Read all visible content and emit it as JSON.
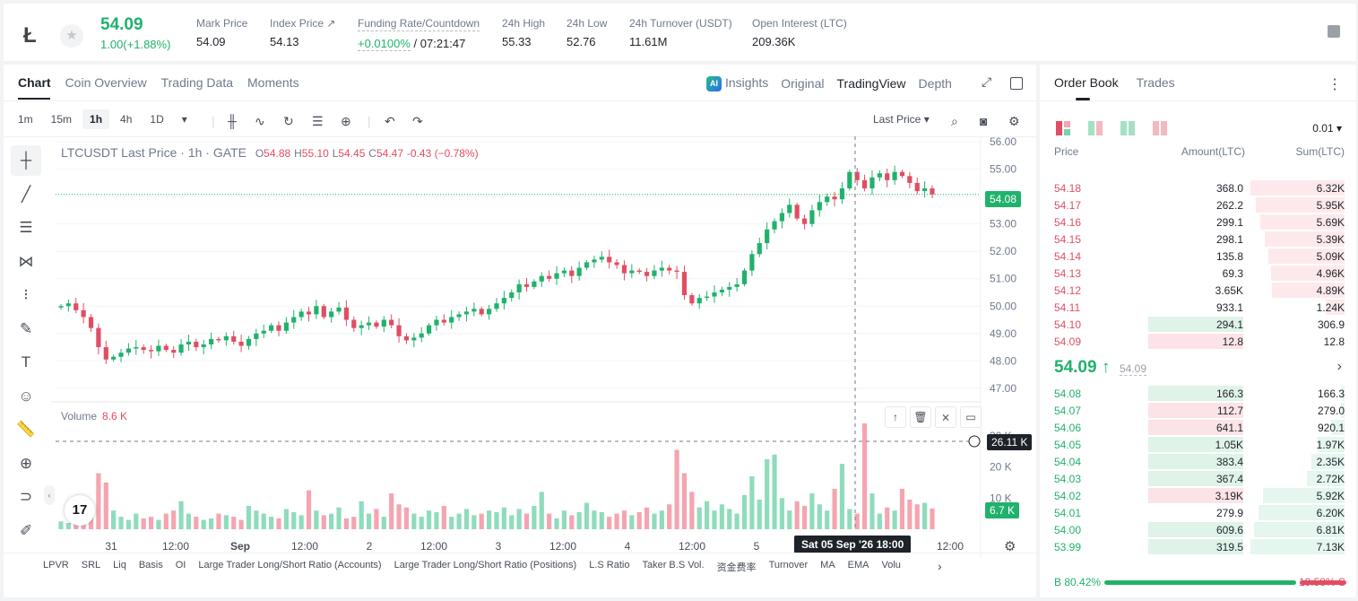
{
  "ticker": {
    "last_price": "54.09",
    "change": "1.00(+1.88%)",
    "stats": [
      {
        "label": "Mark Price",
        "value": "54.09"
      },
      {
        "label": "Index Price ↗",
        "value": "54.13"
      },
      {
        "label": "Funding Rate/Countdown",
        "value_green": "+0.0100%",
        "value_rest": " / 07:21:47"
      },
      {
        "label": "24h High",
        "value": "55.33"
      },
      {
        "label": "24h Low",
        "value": "52.76"
      },
      {
        "label": "24h Turnover (USDT)",
        "value": "11.61M"
      },
      {
        "label": "Open Interest (LTC)",
        "value": "209.36K"
      }
    ],
    "logo_glyph": "Ł",
    "star_glyph": "★"
  },
  "chart_panel": {
    "tabs": [
      "Chart",
      "Coin Overview",
      "Trading Data",
      "Moments"
    ],
    "ai_badge": "AI",
    "view_tabs": [
      "Insights",
      "Original",
      "TradingView",
      "Depth"
    ],
    "intervals": [
      "1m",
      "15m",
      "1h",
      "4h",
      "1D"
    ],
    "dropdown_glyph": "▾",
    "price_type": "Last Price ▾",
    "tool_glyphs": [
      "┼",
      "╱",
      "☰",
      "⋈",
      "⁝",
      "✎",
      "T",
      "☺",
      "📏",
      "⊕",
      "⊃",
      "✐"
    ],
    "ohlc": {
      "title": "LTCUSDT Last Price · 1h · GATE",
      "o_label": "O",
      "o": "54.88",
      "h_label": "H",
      "h": "55.10",
      "l_label": "L",
      "l": "54.45",
      "c_label": "C",
      "c": "54.47",
      "chg": "-0.43 (−0.78%)"
    },
    "volume_label": "Volume",
    "volume_value": "8.6 K",
    "last_price_tag": "54.08",
    "cross_tag": "26.11 K",
    "volume_tag": "6.7 K",
    "cross_time_tag": "Sat 05 Sep '26   18:00",
    "tv_logo": "17",
    "indicators": [
      "LPVR",
      "SRL",
      "Liq",
      "Basis",
      "OI",
      "Large Trader Long/Short Ratio (Accounts)",
      "Large Trader Long/Short Ratio (Positions)",
      "L.S Ratio",
      "Taker B.S Vol.",
      "资金费率",
      "Turnover",
      "MA",
      "EMA",
      "Volu"
    ],
    "colors": {
      "up": "#20b26c",
      "down": "#e04e63",
      "up_vol": "#8fdcbc",
      "down_vol": "#f4a5b1"
    }
  },
  "chart_data": {
    "type": "candlestick",
    "price_axis": [
      "56.00",
      "55.00",
      "54.00",
      "53.00",
      "52.00",
      "51.00",
      "50.00",
      "49.00",
      "48.00",
      "47.00"
    ],
    "volume_axis": [
      "30 K",
      "20 K",
      "10 K"
    ],
    "time_labels": [
      "31",
      "12:00",
      "Sep",
      "12:00",
      "2",
      "12:00",
      "3",
      "12:00",
      "4",
      "12:00",
      "5",
      "12:00"
    ],
    "ylim": [
      46.7,
      56.2
    ],
    "volume_ylim": [
      0,
      34000
    ],
    "close_series": [
      50.0,
      50.1,
      49.85,
      49.6,
      49.2,
      48.5,
      48.05,
      48.15,
      48.3,
      48.45,
      48.5,
      48.4,
      48.35,
      48.55,
      48.4,
      48.3,
      48.6,
      48.7,
      48.5,
      48.6,
      48.8,
      48.75,
      48.9,
      48.7,
      48.55,
      48.8,
      49.0,
      49.1,
      49.3,
      49.1,
      49.4,
      49.6,
      49.8,
      49.7,
      50.0,
      49.6,
      49.8,
      49.95,
      49.5,
      49.2,
      49.3,
      49.4,
      49.25,
      49.5,
      49.3,
      48.9,
      48.75,
      48.85,
      49.0,
      49.3,
      49.5,
      49.4,
      49.6,
      49.7,
      49.8,
      49.9,
      49.7,
      49.9,
      50.1,
      50.3,
      50.5,
      50.8,
      50.7,
      50.9,
      51.1,
      51.0,
      51.2,
      51.3,
      51.1,
      51.4,
      51.6,
      51.7,
      51.8,
      51.6,
      51.5,
      51.2,
      51.3,
      51.25,
      51.1,
      51.3,
      51.4,
      51.3,
      51.25,
      50.4,
      50.1,
      50.3,
      50.35,
      50.5,
      50.6,
      50.7,
      50.8,
      51.3,
      51.9,
      52.3,
      52.8,
      53.1,
      53.4,
      53.7,
      53.2,
      53.0,
      53.5,
      53.8,
      54.0,
      53.9,
      54.3,
      54.9,
      54.6,
      54.3,
      54.7,
      54.85,
      54.6,
      54.9,
      54.75,
      54.5,
      54.2,
      54.3,
      54.08
    ],
    "volume_series": [
      2500,
      2000,
      4500,
      3000,
      8000,
      18000,
      15000,
      6000,
      4000,
      3000,
      5000,
      3500,
      4000,
      3000,
      5000,
      6000,
      9000,
      5000,
      4000,
      3000,
      3500,
      5000,
      4500,
      4000,
      3000,
      7500,
      6000,
      5000,
      4000,
      3500,
      6500,
      5500,
      4500,
      12500,
      6000,
      4500,
      5000,
      7000,
      3500,
      4000,
      9000,
      5000,
      6500,
      4000,
      11500,
      8000,
      7000,
      5000,
      4000,
      6000,
      5500,
      7500,
      4000,
      5000,
      6500,
      4500,
      5000,
      6000,
      5500,
      7000,
      4500,
      6500,
      5000,
      7500,
      12000,
      5000,
      3500,
      6000,
      4500,
      5500,
      8500,
      6000,
      5500,
      4000,
      5000,
      6000,
      4500,
      5500,
      7000,
      5000,
      6000,
      8000,
      25500,
      18000,
      12000,
      7000,
      9000,
      6000,
      8000,
      6500,
      5000,
      11000,
      17000,
      9500,
      22500,
      24000,
      10000,
      6000,
      9000,
      7500,
      11500,
      8000,
      6000,
      13000,
      21000,
      6500,
      5000,
      34000,
      11500,
      5000,
      7000,
      6000,
      13000,
      9500,
      8000,
      8500,
      6700
    ]
  },
  "orderbook": {
    "tabs": [
      "Order Book",
      "Trades"
    ],
    "more_glyph": "⋮",
    "precision": "0.01 ▾",
    "headers": {
      "price": "Price",
      "amount": "Amount(LTC)",
      "sum": "Sum(LTC)"
    },
    "asks": [
      {
        "price": "54.18",
        "amount": "368.0",
        "sum": "6.32K",
        "depth": 1.0,
        "amt": 0.0
      },
      {
        "price": "54.17",
        "amount": "262.2",
        "sum": "5.95K",
        "depth": 0.94,
        "amt": 0.0
      },
      {
        "price": "54.16",
        "amount": "299.1",
        "sum": "5.69K",
        "depth": 0.9,
        "amt": 0.0
      },
      {
        "price": "54.15",
        "amount": "298.1",
        "sum": "5.39K",
        "depth": 0.85,
        "amt": 0.0
      },
      {
        "price": "54.14",
        "amount": "135.8",
        "sum": "5.09K",
        "depth": 0.81,
        "amt": 0.0
      },
      {
        "price": "54.13",
        "amount": "69.3",
        "sum": "4.96K",
        "depth": 0.78,
        "amt": 0.0
      },
      {
        "price": "54.12",
        "amount": "3.65K",
        "sum": "4.89K",
        "depth": 0.77,
        "amt": 0.0
      },
      {
        "price": "54.11",
        "amount": "933.1",
        "sum": "1.24K",
        "depth": 0.2,
        "amt": 0.0
      },
      {
        "price": "54.10",
        "amount": "294.1",
        "sum": "306.9",
        "depth": 0.0,
        "amt": 1.0,
        "amt_color": "up"
      },
      {
        "price": "54.09",
        "amount": "12.8",
        "sum": "12.8",
        "depth": 0.0,
        "amt": 1.0,
        "amt_color": "down"
      }
    ],
    "mid_price": "54.09 ↑",
    "mid_ref": "54.09",
    "mid_chevron": "›",
    "bids": [
      {
        "price": "54.08",
        "amount": "166.3",
        "sum": "166.3",
        "depth": 0.03,
        "amt": 1.0,
        "amt_color": "up"
      },
      {
        "price": "54.07",
        "amount": "112.7",
        "sum": "279.0",
        "depth": 0.04,
        "amt": 1.0,
        "amt_color": "down"
      },
      {
        "price": "54.06",
        "amount": "641.1",
        "sum": "920.1",
        "depth": 0.14,
        "amt": 1.0,
        "amt_color": "down"
      },
      {
        "price": "54.05",
        "amount": "1.05K",
        "sum": "1.97K",
        "depth": 0.29,
        "amt": 1.0,
        "amt_color": "up"
      },
      {
        "price": "54.04",
        "amount": "383.4",
        "sum": "2.35K",
        "depth": 0.35,
        "amt": 1.0,
        "amt_color": "up"
      },
      {
        "price": "54.03",
        "amount": "367.4",
        "sum": "2.72K",
        "depth": 0.4,
        "amt": 1.0,
        "amt_color": "up"
      },
      {
        "price": "54.02",
        "amount": "3.19K",
        "sum": "5.92K",
        "depth": 0.87,
        "amt": 1.0,
        "amt_color": "down"
      },
      {
        "price": "54.01",
        "amount": "279.9",
        "sum": "6.20K",
        "depth": 0.91,
        "amt": 0.0
      },
      {
        "price": "54.00",
        "amount": "609.6",
        "sum": "6.81K",
        "depth": 0.96,
        "amt": 1.0,
        "amt_color": "up"
      },
      {
        "price": "53.99",
        "amount": "319.5",
        "sum": "7.13K",
        "depth": 1.0,
        "amt": 1.0,
        "amt_color": "up"
      }
    ],
    "buy_ratio_label": "B 80.42%",
    "sell_ratio_label": "19.58% S",
    "buy_ratio": 0.8042
  }
}
